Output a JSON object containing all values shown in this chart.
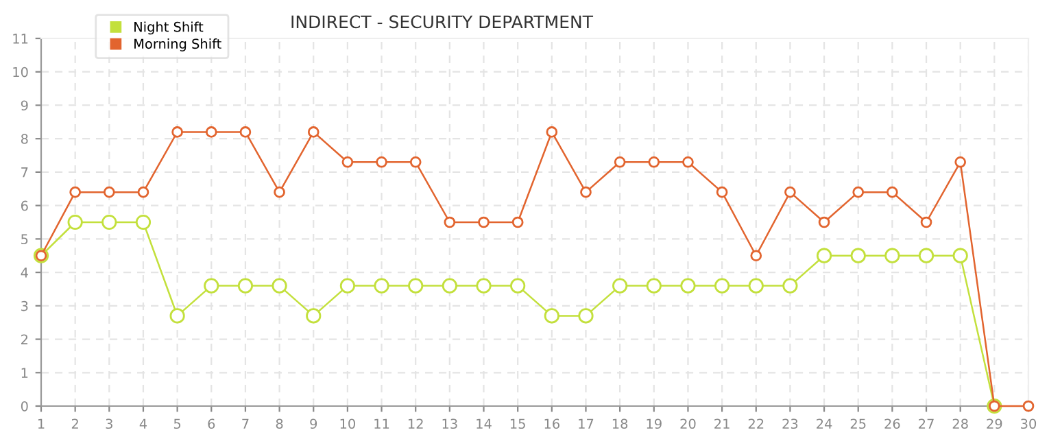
{
  "chart_data": {
    "type": "line",
    "title": "INDIRECT - SECURITY DEPARTMENT",
    "x": [
      1,
      2,
      3,
      4,
      5,
      6,
      7,
      8,
      9,
      10,
      11,
      12,
      13,
      14,
      15,
      16,
      17,
      18,
      19,
      20,
      21,
      22,
      23,
      24,
      25,
      26,
      27,
      28,
      29,
      30
    ],
    "series": [
      {
        "name": "Night Shift",
        "color": "#c3e03c",
        "values": [
          4.5,
          5.5,
          5.5,
          5.5,
          2.7,
          3.6,
          3.6,
          3.6,
          2.7,
          3.6,
          3.6,
          3.6,
          3.6,
          3.6,
          3.6,
          2.7,
          2.7,
          3.6,
          3.6,
          3.6,
          3.6,
          3.6,
          3.6,
          4.5,
          4.5,
          4.5,
          4.5,
          4.5,
          0,
          null
        ]
      },
      {
        "name": "Morning Shift",
        "color": "#e2642e",
        "values": [
          4.5,
          6.4,
          6.4,
          6.4,
          8.2,
          8.2,
          8.2,
          6.4,
          8.2,
          7.3,
          7.3,
          7.3,
          5.5,
          5.5,
          5.5,
          8.2,
          6.4,
          7.3,
          7.3,
          7.3,
          6.4,
          4.5,
          6.4,
          5.5,
          6.4,
          6.4,
          5.5,
          7.3,
          0,
          0
        ]
      }
    ],
    "xlim": [
      1,
      30
    ],
    "xticks": [
      1,
      2,
      3,
      4,
      5,
      6,
      7,
      8,
      9,
      10,
      11,
      12,
      13,
      14,
      15,
      16,
      17,
      18,
      19,
      20,
      21,
      22,
      23,
      24,
      25,
      26,
      27,
      28,
      29,
      30
    ],
    "ylim": [
      0,
      11
    ],
    "yticks": [
      0,
      1,
      2,
      3,
      4,
      5,
      6,
      7,
      8,
      9,
      10,
      11
    ],
    "grid": true,
    "legend": "top left",
    "marker": "circle",
    "line_style": "solid"
  }
}
